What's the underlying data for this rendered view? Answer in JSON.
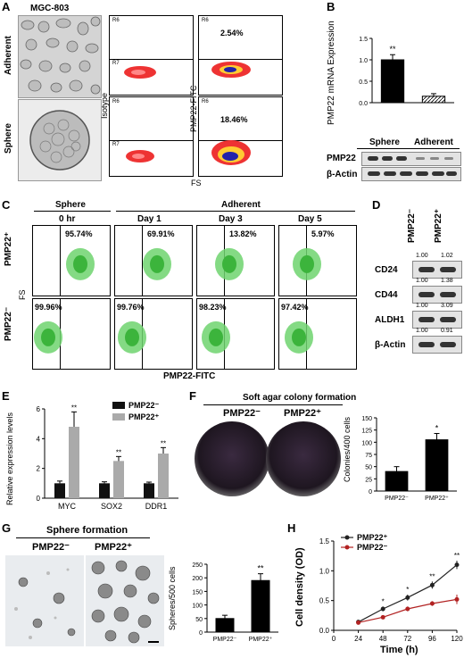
{
  "panelA": {
    "label": "A",
    "cell_line": "MGC-803",
    "rows": [
      "Adherent",
      "Sphere"
    ],
    "isotype_axis": "Isotype",
    "pmp22_axis": "PMP22-FITC",
    "x_axis": "FS",
    "gate_upper": "R6",
    "gate_lower": "R7",
    "y_ticks": [
      "10⁴",
      "10³",
      "10²",
      "10¹",
      "10⁰"
    ],
    "x_ticks": [
      "0",
      "64",
      "128",
      "192",
      "256"
    ],
    "adherent_pct": "2.54%",
    "sphere_pct": "18.46%"
  },
  "panelB": {
    "label": "B",
    "chart_data": {
      "type": "bar",
      "categories": [
        "Sphere",
        "Adherent"
      ],
      "values": [
        1.0,
        0.15
      ],
      "errors": [
        0.12,
        0.06
      ],
      "ylabel": "PMP22 mRNA Expression",
      "ylim": [
        0,
        1.5
      ],
      "yticks": [
        "0.0",
        "0.5",
        "1.0",
        "1.5"
      ],
      "significance": "**"
    },
    "blot_groups": [
      "Sphere",
      "Adherent"
    ],
    "blot_rows": [
      "PMP22",
      "β-Actin"
    ]
  },
  "panelC": {
    "label": "C",
    "group_sphere": "Sphere",
    "group_adherent": "Adherent",
    "timepoints": [
      "0 hr",
      "Day 1",
      "Day 3",
      "Day 5"
    ],
    "row_pos": "PMP22⁺",
    "row_neg": "PMP22⁻",
    "y_axis": "FS",
    "x_axis": "PMP22-FITC",
    "pos_pcts": [
      "95.74%",
      "69.91%",
      "13.82%",
      "5.97%"
    ],
    "neg_pcts": [
      "99.96%",
      "99.76%",
      "98.23%",
      "97.42%"
    ]
  },
  "panelD": {
    "label": "D",
    "cols": [
      "PMP22⁻",
      "PMP22⁺"
    ],
    "rows": [
      {
        "name": "CD24",
        "vals": [
          "1.00",
          "1.02"
        ]
      },
      {
        "name": "CD44",
        "vals": [
          "1.00",
          "1.38"
        ]
      },
      {
        "name": "ALDH1",
        "vals": [
          "1.00",
          "3.09"
        ]
      },
      {
        "name": "β-Actin",
        "vals": [
          "1.00",
          "0.91"
        ]
      }
    ]
  },
  "panelE": {
    "label": "E",
    "chart_data": {
      "type": "bar",
      "categories": [
        "MYC",
        "SOX2",
        "DDR1"
      ],
      "series": [
        {
          "name": "PMP22⁻",
          "values": [
            1.0,
            1.0,
            1.0
          ],
          "errors": [
            0.15,
            0.1,
            0.08
          ],
          "color": "#111111"
        },
        {
          "name": "PMP22⁺",
          "values": [
            4.8,
            2.5,
            3.0
          ],
          "errors": [
            1.0,
            0.3,
            0.4
          ],
          "color": "#aaaaaa"
        }
      ],
      "ylabel": "Relative expression levels",
      "ylim": [
        0,
        6
      ],
      "yticks": [
        "0",
        "2",
        "4",
        "6"
      ],
      "significance": [
        "**",
        "**",
        "**"
      ]
    }
  },
  "panelF": {
    "label": "F",
    "title": "Soft agar colony formation",
    "dish_labels": [
      "PMP22⁻",
      "PMP22⁺"
    ],
    "chart_data": {
      "type": "bar",
      "categories": [
        "PMP22⁻",
        "PMP22⁺"
      ],
      "values": [
        40,
        105
      ],
      "errors": [
        10,
        13
      ],
      "ylabel": "Colonies/400 cells",
      "ylim": [
        0,
        150
      ],
      "yticks": [
        "0",
        "25",
        "50",
        "75",
        "100",
        "125",
        "150"
      ],
      "significance": "*"
    }
  },
  "panelG": {
    "label": "G",
    "title": "Sphere formation",
    "image_labels": [
      "PMP22⁻",
      "PMP22⁺"
    ],
    "chart_data": {
      "type": "bar",
      "categories": [
        "PMP22⁻",
        "PMP22⁺"
      ],
      "values": [
        50,
        190
      ],
      "errors": [
        12,
        25
      ],
      "ylabel": "Spheres/500 cells",
      "ylim": [
        0,
        250
      ],
      "yticks": [
        "0",
        "50",
        "100",
        "150",
        "200",
        "250"
      ],
      "significance": "**"
    }
  },
  "panelH": {
    "label": "H",
    "chart_data": {
      "type": "line",
      "x": [
        24,
        48,
        72,
        96,
        120
      ],
      "series": [
        {
          "name": "PMP22⁺",
          "values": [
            0.14,
            0.36,
            0.55,
            0.76,
            1.1
          ],
          "errors": [
            0.02,
            0.04,
            0.05,
            0.06,
            0.07
          ],
          "color": "#222222"
        },
        {
          "name": "PMP22⁻",
          "values": [
            0.13,
            0.22,
            0.36,
            0.45,
            0.52
          ],
          "errors": [
            0.02,
            0.03,
            0.04,
            0.04,
            0.08
          ],
          "color": "#b22222"
        }
      ],
      "xlabel": "Time (h)",
      "ylabel": "Cell density (OD)",
      "ylim": [
        0,
        1.5
      ],
      "xticks": [
        "0",
        "24",
        "48",
        "72",
        "96",
        "120"
      ],
      "yticks": [
        "0.0",
        "0.5",
        "1.0",
        "1.5"
      ],
      "significance": [
        "",
        "*",
        "*",
        "**",
        "**"
      ]
    }
  }
}
